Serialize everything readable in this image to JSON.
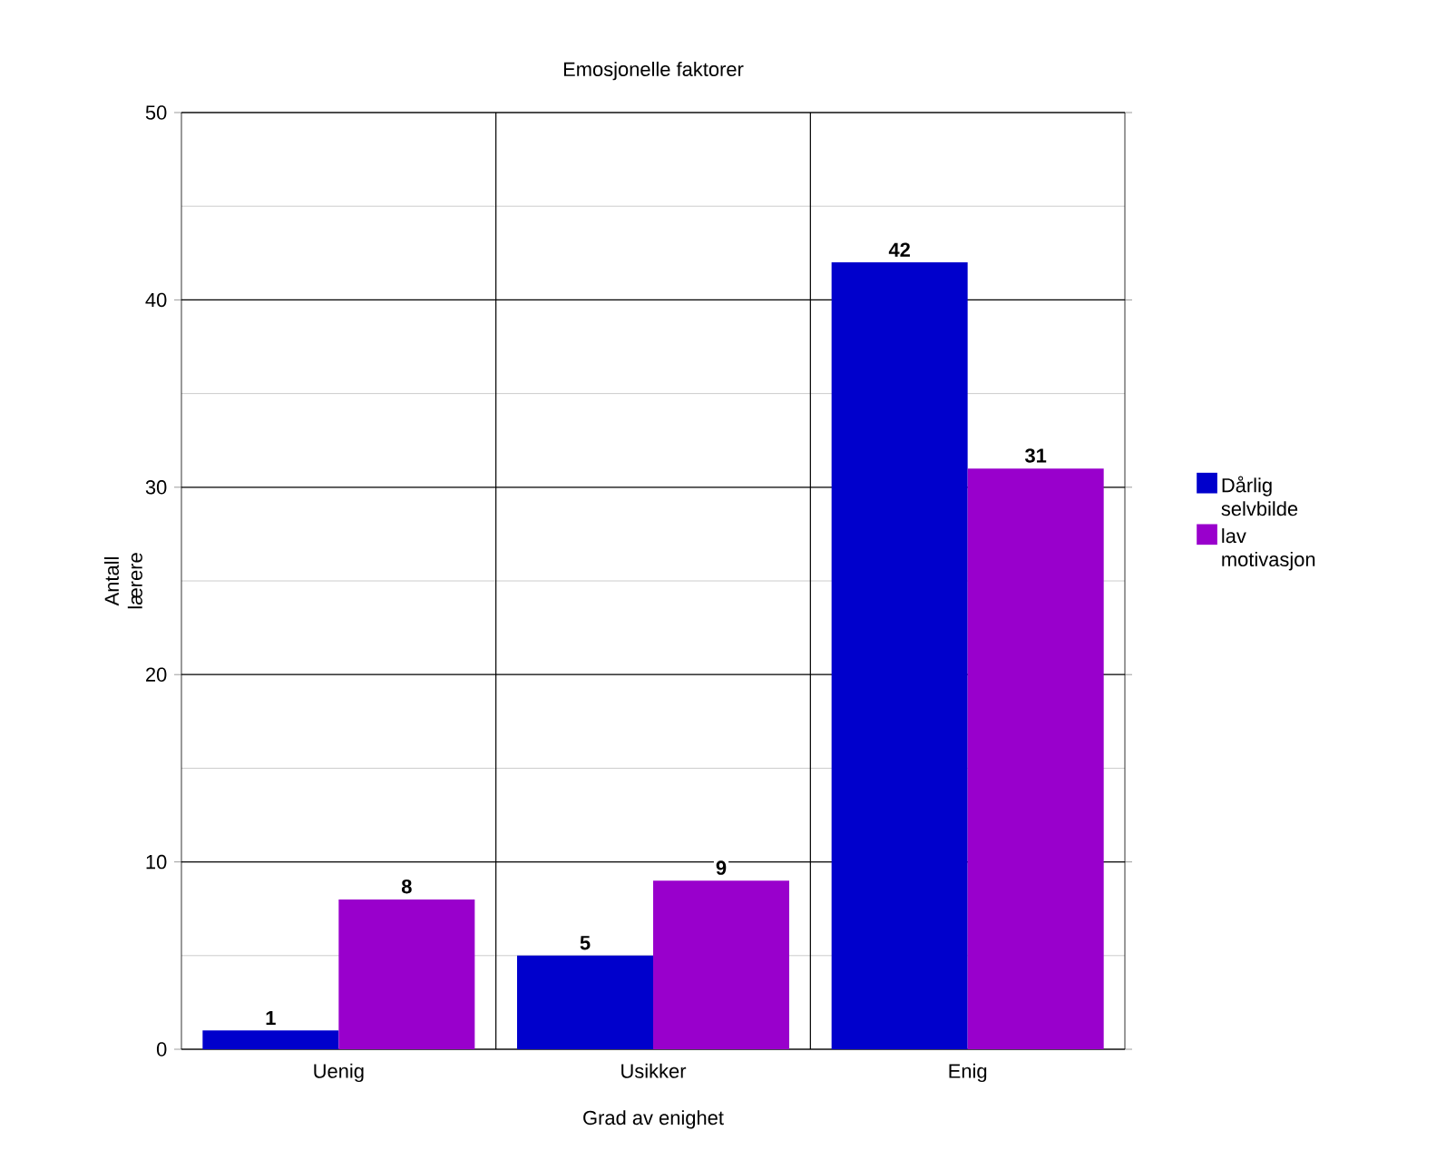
{
  "chart_data": {
    "type": "bar",
    "title": "Emosjonelle faktorer",
    "xlabel": "Grad av enighet",
    "ylabel": "Antall lærere",
    "categories": [
      "Uenig",
      "Usikker",
      "Enig"
    ],
    "series": [
      {
        "name": "Dårlig selvbilde",
        "color": "#0000cc",
        "values": [
          1,
          5,
          42
        ]
      },
      {
        "name": "lav motivasjon",
        "color": "#9900cc",
        "values": [
          8,
          9,
          31
        ]
      }
    ],
    "ylim": [
      0,
      50
    ],
    "yticks": [
      0,
      10,
      20,
      30,
      40,
      50
    ],
    "grid": true,
    "legend": "right",
    "data_labels": true
  }
}
